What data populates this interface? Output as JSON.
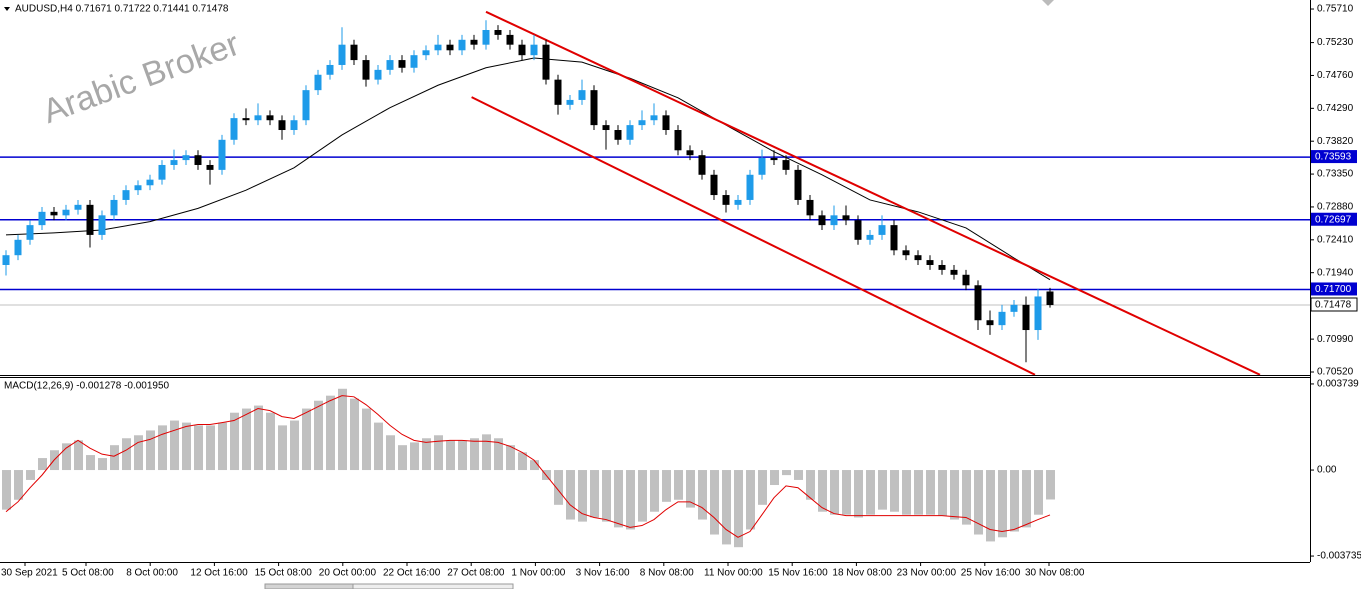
{
  "chart_data": {
    "type": "candlestick",
    "title": "AUDUSD,H4  0.71671 0.71722 0.71441 0.71478",
    "watermark": "Arabic Broker",
    "bull_color": "#1e9be9",
    "bear_color": "#000000",
    "ylim": [
      0.70477,
      0.75839
    ],
    "yticks": [
      {
        "value": 0.7571,
        "label": "0.75710"
      },
      {
        "value": 0.7523,
        "label": "0.75230"
      },
      {
        "value": 0.7476,
        "label": "0.74760"
      },
      {
        "value": 0.7429,
        "label": "0.74290"
      },
      {
        "value": 0.7382,
        "label": "0.73820"
      },
      {
        "value": 0.7335,
        "label": "0.73350"
      },
      {
        "value": 0.7288,
        "label": "0.72880"
      },
      {
        "value": 0.7241,
        "label": "0.72410"
      },
      {
        "value": 0.7194,
        "label": "0.71940"
      },
      {
        "value": 0.7099,
        "label": "0.70990"
      },
      {
        "value": 0.7052,
        "label": "0.70520"
      }
    ],
    "x_labels": [
      "30 Sep 2021",
      "5 Oct 08:00",
      "8 Oct 00:00",
      "12 Oct 16:00",
      "15 Oct 08:00",
      "20 Oct 00:00",
      "22 Oct 16:00",
      "27 Oct 08:00",
      "1 Nov 00:00",
      "3 Nov 16:00",
      "8 Nov 08:00",
      "11 Nov 00:00",
      "15 Nov 16:00",
      "18 Nov 08:00",
      "23 Nov 00:00",
      "25 Nov 16:00",
      "30 Nov 08:00"
    ],
    "ohlc": [
      [
        0.7205,
        0.7226,
        0.719,
        0.7219
      ],
      [
        0.7219,
        0.7248,
        0.7212,
        0.7241
      ],
      [
        0.7241,
        0.7269,
        0.7234,
        0.7262
      ],
      [
        0.7262,
        0.7288,
        0.7255,
        0.7281
      ],
      [
        0.7281,
        0.7288,
        0.7269,
        0.7276
      ],
      [
        0.7276,
        0.7291,
        0.7269,
        0.7284
      ],
      [
        0.7284,
        0.7298,
        0.7277,
        0.7291
      ],
      [
        0.7291,
        0.7298,
        0.723,
        0.7248
      ],
      [
        0.7248,
        0.7283,
        0.7241,
        0.7276
      ],
      [
        0.7276,
        0.7305,
        0.7269,
        0.7298
      ],
      [
        0.7298,
        0.7319,
        0.7291,
        0.7312
      ],
      [
        0.7312,
        0.7326,
        0.7305,
        0.7319
      ],
      [
        0.7319,
        0.7334,
        0.7312,
        0.7327
      ],
      [
        0.7327,
        0.7355,
        0.732,
        0.7348
      ],
      [
        0.7348,
        0.737,
        0.7341,
        0.7355
      ],
      [
        0.7355,
        0.7369,
        0.7348,
        0.7362
      ],
      [
        0.7362,
        0.7369,
        0.7341,
        0.7348
      ],
      [
        0.7348,
        0.7355,
        0.732,
        0.7341
      ],
      [
        0.7341,
        0.7391,
        0.7334,
        0.7384
      ],
      [
        0.7384,
        0.7422,
        0.7377,
        0.7415
      ],
      [
        0.7415,
        0.7429,
        0.7405,
        0.7412
      ],
      [
        0.7412,
        0.7436,
        0.7405,
        0.7419
      ],
      [
        0.7419,
        0.7426,
        0.7405,
        0.7412
      ],
      [
        0.7412,
        0.7419,
        0.7384,
        0.7398
      ],
      [
        0.7398,
        0.7419,
        0.7391,
        0.7412
      ],
      [
        0.7412,
        0.7462,
        0.7405,
        0.7455
      ],
      [
        0.7455,
        0.7484,
        0.7448,
        0.7477
      ],
      [
        0.7477,
        0.7498,
        0.747,
        0.7491
      ],
      [
        0.7491,
        0.7545,
        0.7484,
        0.752
      ],
      [
        0.752,
        0.7527,
        0.7491,
        0.7498
      ],
      [
        0.7498,
        0.7505,
        0.746,
        0.747
      ],
      [
        0.747,
        0.7491,
        0.7463,
        0.7484
      ],
      [
        0.7484,
        0.7505,
        0.7477,
        0.7498
      ],
      [
        0.7498,
        0.7505,
        0.748,
        0.7487
      ],
      [
        0.7487,
        0.7512,
        0.748,
        0.7505
      ],
      [
        0.7505,
        0.7519,
        0.7498,
        0.7512
      ],
      [
        0.7512,
        0.7534,
        0.7505,
        0.752
      ],
      [
        0.752,
        0.7527,
        0.7505,
        0.7512
      ],
      [
        0.7512,
        0.7534,
        0.7505,
        0.7527
      ],
      [
        0.7527,
        0.7534,
        0.7513,
        0.752
      ],
      [
        0.752,
        0.7555,
        0.7513,
        0.7541
      ],
      [
        0.7541,
        0.7548,
        0.7527,
        0.7534
      ],
      [
        0.7534,
        0.7541,
        0.7513,
        0.752
      ],
      [
        0.752,
        0.7527,
        0.7498,
        0.7505
      ],
      [
        0.7505,
        0.7534,
        0.7498,
        0.752
      ],
      [
        0.752,
        0.7527,
        0.7463,
        0.747
      ],
      [
        0.747,
        0.7477,
        0.742,
        0.7434
      ],
      [
        0.7434,
        0.7448,
        0.7427,
        0.7441
      ],
      [
        0.7441,
        0.747,
        0.7434,
        0.7455
      ],
      [
        0.7455,
        0.7462,
        0.7398,
        0.7405
      ],
      [
        0.7405,
        0.7412,
        0.737,
        0.7398
      ],
      [
        0.7398,
        0.7405,
        0.7377,
        0.7384
      ],
      [
        0.7384,
        0.7412,
        0.7377,
        0.7405
      ],
      [
        0.7405,
        0.7426,
        0.7398,
        0.7412
      ],
      [
        0.7412,
        0.7436,
        0.7405,
        0.7419
      ],
      [
        0.7419,
        0.7426,
        0.7391,
        0.7398
      ],
      [
        0.7398,
        0.7405,
        0.7362,
        0.7369
      ],
      [
        0.7369,
        0.7376,
        0.7355,
        0.7362
      ],
      [
        0.7362,
        0.7369,
        0.7327,
        0.7334
      ],
      [
        0.7334,
        0.7341,
        0.7298,
        0.7305
      ],
      [
        0.7305,
        0.7312,
        0.728,
        0.7291
      ],
      [
        0.7291,
        0.7305,
        0.7284,
        0.7298
      ],
      [
        0.7298,
        0.7341,
        0.7291,
        0.7334
      ],
      [
        0.7334,
        0.737,
        0.7327,
        0.7358
      ],
      [
        0.7358,
        0.7369,
        0.7348,
        0.7355
      ],
      [
        0.7355,
        0.7362,
        0.7334,
        0.7341
      ],
      [
        0.7341,
        0.7348,
        0.7291,
        0.7298
      ],
      [
        0.7298,
        0.7305,
        0.7269,
        0.7276
      ],
      [
        0.7276,
        0.7283,
        0.7255,
        0.7262
      ],
      [
        0.7262,
        0.729,
        0.7255,
        0.7276
      ],
      [
        0.7276,
        0.729,
        0.7262,
        0.7269
      ],
      [
        0.7269,
        0.7276,
        0.7234,
        0.7241
      ],
      [
        0.7241,
        0.7255,
        0.7234,
        0.7248
      ],
      [
        0.7248,
        0.7276,
        0.7241,
        0.7262
      ],
      [
        0.7262,
        0.7269,
        0.7219,
        0.7226
      ],
      [
        0.7226,
        0.7233,
        0.7212,
        0.7219
      ],
      [
        0.7219,
        0.7226,
        0.7205,
        0.7212
      ],
      [
        0.7212,
        0.7219,
        0.7198,
        0.7205
      ],
      [
        0.7205,
        0.7212,
        0.7191,
        0.7198
      ],
      [
        0.7198,
        0.7205,
        0.7184,
        0.7191
      ],
      [
        0.7191,
        0.7198,
        0.7169,
        0.7176
      ],
      [
        0.7176,
        0.7183,
        0.7112,
        0.7126
      ],
      [
        0.7126,
        0.714,
        0.7105,
        0.7119
      ],
      [
        0.7119,
        0.7148,
        0.7112,
        0.7138
      ],
      [
        0.7138,
        0.7155,
        0.7131,
        0.7148
      ],
      [
        0.7148,
        0.716,
        0.7066,
        0.7112
      ],
      [
        0.7112,
        0.7171,
        0.7098,
        0.716
      ],
      [
        0.71671,
        0.71722,
        0.71441,
        0.71478
      ]
    ],
    "moving_average": {
      "color": "#000000",
      "x": [
        0,
        4,
        8,
        12,
        16,
        20,
        24,
        28,
        32,
        36,
        40,
        44,
        48,
        52,
        56,
        60,
        64,
        68,
        72,
        76,
        80,
        84,
        87
      ],
      "values": [
        0.7248,
        0.7251,
        0.7255,
        0.7267,
        0.7286,
        0.7312,
        0.7344,
        0.7391,
        0.743,
        0.7462,
        0.7487,
        0.7501,
        0.7495,
        0.7472,
        0.7444,
        0.7405,
        0.7367,
        0.7334,
        0.7298,
        0.7281,
        0.7258,
        0.7215,
        0.7184
      ]
    },
    "trendlines": [
      {
        "color": "#e00000",
        "x": [
          40,
          104.5
        ],
        "values": [
          0.7567,
          0.7048
        ]
      },
      {
        "color": "#e00000",
        "x": [
          38.8,
          85.75
        ],
        "values": [
          0.7445,
          0.7048
        ]
      }
    ],
    "levels": [
      {
        "color": "#0000d0",
        "value": 0.73593
      },
      {
        "color": "#0000d0",
        "value": 0.72697
      },
      {
        "color": "#0000d0",
        "value": {
          "value": 0.717,
          "label": "0.71700"
        }
      }
    ],
    "last_price": 0.71478,
    "macd": {
      "title": "MACD(12,26,9) -0.001278 -0.001950",
      "ylim": [
        -0.003993,
        0.003997
      ],
      "yticks": [
        0.003739,
        {
          "value": 0,
          "label": "0.00"
        },
        -0.003735
      ],
      "histogram_color": "#c0c0c0",
      "signal_color": "#e00000",
      "histogram": [
        -0.00172,
        -0.00129,
        -0.00043,
        0.00052,
        0.00086,
        0.00116,
        0.00129,
        0.00065,
        0.00052,
        0.00108,
        0.00138,
        0.00151,
        0.00172,
        0.00194,
        0.00215,
        0.00206,
        0.00194,
        0.00194,
        0.00206,
        0.00249,
        0.00267,
        0.0028,
        0.00249,
        0.00194,
        0.00215,
        0.00267,
        0.00301,
        0.00323,
        0.00353,
        0.0031,
        0.00267,
        0.00206,
        0.00151,
        0.00108,
        0.0012,
        0.00138,
        0.00151,
        0.00129,
        0.00129,
        0.00138,
        0.00155,
        0.00138,
        0.00108,
        0.00077,
        0.00043,
        -0.00043,
        -0.00151,
        -0.00215,
        -0.00224,
        -0.00206,
        -0.00224,
        -0.00249,
        -0.00258,
        -0.00224,
        -0.00181,
        -0.00138,
        -0.00129,
        -0.00163,
        -0.00215,
        -0.0028,
        -0.00323,
        -0.00335,
        -0.00258,
        -0.00151,
        -0.00065,
        -0.00022,
        -0.00043,
        -0.00129,
        -0.00181,
        -0.00194,
        -0.00194,
        -0.00206,
        -0.00194,
        -0.00172,
        -0.00181,
        -0.00194,
        -0.00194,
        -0.00194,
        -0.00198,
        -0.00215,
        -0.00237,
        -0.0028,
        -0.0031,
        -0.00292,
        -0.00267,
        -0.00249,
        -0.00194,
        -0.001278
      ],
      "signal": [
        -0.00181,
        -0.00138,
        -0.00077,
        -0.00022,
        0.00043,
        0.00095,
        0.00129,
        0.00095,
        0.00069,
        0.0006,
        0.00086,
        0.0012,
        0.00133,
        0.00155,
        0.00172,
        0.00189,
        0.00198,
        0.00198,
        0.00206,
        0.00215,
        0.00241,
        0.00267,
        0.00258,
        0.00232,
        0.00224,
        0.00249,
        0.00275,
        0.00301,
        0.00323,
        0.00318,
        0.00284,
        0.00241,
        0.00194,
        0.00155,
        0.00129,
        0.0012,
        0.00125,
        0.00129,
        0.00129,
        0.00125,
        0.00125,
        0.0012,
        0.00103,
        0.00077,
        0.00043,
        -0.00022,
        -0.00086,
        -0.00151,
        -0.00189,
        -0.00206,
        -0.00215,
        -0.00232,
        -0.00249,
        -0.00241,
        -0.00215,
        -0.00172,
        -0.00138,
        -0.00138,
        -0.00163,
        -0.00206,
        -0.00258,
        -0.00292,
        -0.00267,
        -0.00194,
        -0.0012,
        -0.00069,
        -0.00077,
        -0.0012,
        -0.00163,
        -0.00189,
        -0.00198,
        -0.00198,
        -0.00198,
        -0.00198,
        -0.00198,
        -0.00198,
        -0.00198,
        -0.00198,
        -0.00198,
        -0.00202,
        -0.00206,
        -0.00232,
        -0.00258,
        -0.00267,
        -0.00258,
        -0.00237,
        -0.00215,
        -0.00195
      ]
    }
  }
}
